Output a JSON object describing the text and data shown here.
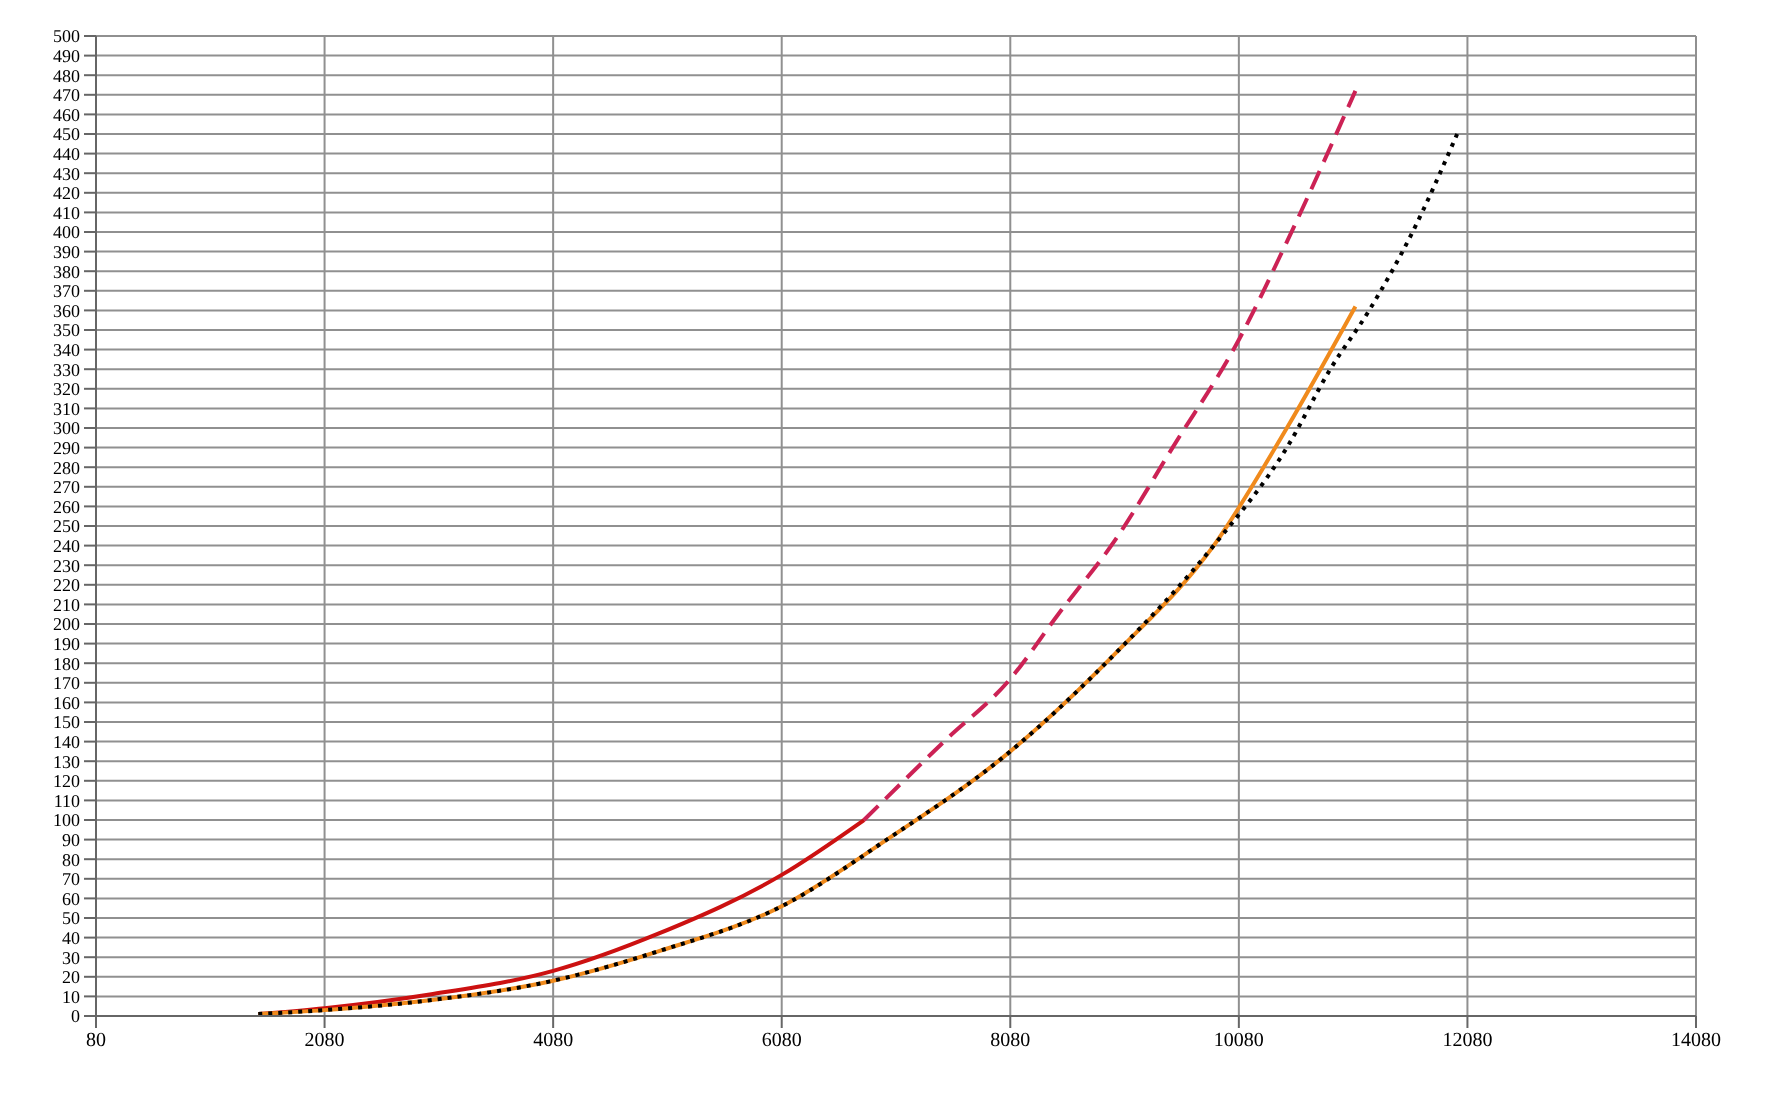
{
  "chart_data": {
    "type": "line",
    "xlim": [
      80,
      14080
    ],
    "xticks": [
      80,
      2080,
      4080,
      6080,
      8080,
      10080,
      12080,
      14080
    ],
    "ylim": [
      0,
      500
    ],
    "yticks": [
      0,
      10,
      20,
      30,
      40,
      50,
      60,
      70,
      80,
      90,
      100,
      110,
      120,
      130,
      140,
      150,
      160,
      170,
      180,
      190,
      200,
      210,
      220,
      230,
      240,
      250,
      260,
      270,
      280,
      290,
      300,
      310,
      320,
      330,
      340,
      350,
      360,
      370,
      380,
      390,
      400,
      410,
      420,
      430,
      440,
      450,
      460,
      470,
      480,
      490,
      500
    ],
    "grid": true,
    "marker": "none",
    "series": [
      {
        "color": "#cc1111",
        "line_style": "solid",
        "x": [
          1500,
          2080,
          3000,
          4080,
          5000,
          6080,
          6800
        ],
        "values": [
          1,
          4,
          11,
          23,
          42,
          72,
          100
        ]
      },
      {
        "color": "#cc2255",
        "line_style": "dashed",
        "x": [
          6800,
          7500,
          8080,
          8500,
          9000,
          9500,
          10080,
          10500,
          11100
        ],
        "values": [
          100,
          140,
          172,
          205,
          243,
          290,
          345,
          395,
          472
        ]
      },
      {
        "color": "#f08a1c",
        "line_style": "solid",
        "x": [
          1500,
          2080,
          3000,
          4080,
          5000,
          6080,
          7000,
          8080,
          9000,
          9860,
          10500,
          11100
        ],
        "values": [
          1,
          3,
          8,
          18,
          33,
          56,
          90,
          135,
          185,
          240,
          300,
          362
        ]
      },
      {
        "color": "#000000",
        "line_style": "dotted",
        "x": [
          1500,
          2080,
          3000,
          4080,
          5000,
          6080,
          7000,
          8080,
          9000,
          9860,
          10500,
          10880,
          11220,
          11600,
          11990
        ],
        "values": [
          1,
          3,
          8,
          18,
          33,
          56,
          90,
          135,
          185,
          240,
          290,
          330,
          360,
          400,
          450
        ]
      }
    ]
  }
}
